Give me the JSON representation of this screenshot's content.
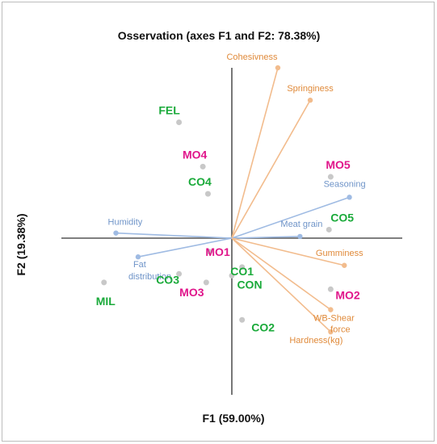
{
  "chart_data": {
    "type": "biplot",
    "title": "Osservation (axes F1 and F2: 78.38%)",
    "xlabel": "F1 (59.00%)",
    "ylabel": "F2 (19.38%)",
    "xlim": [
      -1.0,
      1.0
    ],
    "ylim": [
      -0.92,
      1.0
    ],
    "observations": [
      {
        "label": "FEL",
        "x": -0.31,
        "y": 0.68,
        "group": "green"
      },
      {
        "label": "MO4",
        "x": -0.17,
        "y": 0.42,
        "group": "pink"
      },
      {
        "label": "CO4",
        "x": -0.14,
        "y": 0.26,
        "group": "green"
      },
      {
        "label": "MO5",
        "x": 0.58,
        "y": 0.36,
        "group": "pink"
      },
      {
        "label": "CO5",
        "x": 0.57,
        "y": 0.05,
        "group": "green"
      },
      {
        "label": "MO1",
        "x": -0.13,
        "y": -0.08,
        "group": "pink"
      },
      {
        "label": "CO1",
        "x": 0.06,
        "y": -0.17,
        "group": "green"
      },
      {
        "label": "CON",
        "x": 0.0,
        "y": -0.22,
        "group": "green"
      },
      {
        "label": "CO3",
        "x": -0.31,
        "y": -0.21,
        "group": "green"
      },
      {
        "label": "MO3",
        "x": -0.15,
        "y": -0.26,
        "group": "pink"
      },
      {
        "label": "MO2",
        "x": 0.58,
        "y": -0.3,
        "group": "pink"
      },
      {
        "label": "CO2",
        "x": 0.06,
        "y": -0.48,
        "group": "green"
      },
      {
        "label": "MIL",
        "x": -0.75,
        "y": -0.26,
        "group": "green"
      }
    ],
    "variables": [
      {
        "label": "Cohesivness",
        "x": 0.27,
        "y": 1.0,
        "color": "#f2bc8d"
      },
      {
        "label": "Springiness",
        "x": 0.46,
        "y": 0.81,
        "color": "#f2bc8d"
      },
      {
        "label": "Seasoning",
        "x": 0.69,
        "y": 0.24,
        "color": "#9fbbe3"
      },
      {
        "label": "Meat grain",
        "x": 0.4,
        "y": 0.01,
        "color": "#9fbbe3"
      },
      {
        "label": "Gumminess",
        "x": 0.66,
        "y": -0.16,
        "color": "#f2bc8d"
      },
      {
        "label": "WB-Shear force",
        "x": 0.58,
        "y": -0.42,
        "color": "#f2bc8d"
      },
      {
        "label": "Hardness(kg)",
        "x": 0.58,
        "y": -0.55,
        "color": "#f2bc8d"
      },
      {
        "label": "Humidity",
        "x": -0.68,
        "y": 0.03,
        "color": "#9fbbe3"
      },
      {
        "label": "Fat distribution",
        "x": -0.55,
        "y": -0.11,
        "color": "#9fbbe3"
      }
    ],
    "colors": {
      "green": "#1aaa3a",
      "pink": "#e0168b",
      "orange_text": "#e08a3a",
      "blue_text": "#6f94c8",
      "point": "#c8c8c8",
      "axis": "#555555"
    },
    "grid": false
  }
}
